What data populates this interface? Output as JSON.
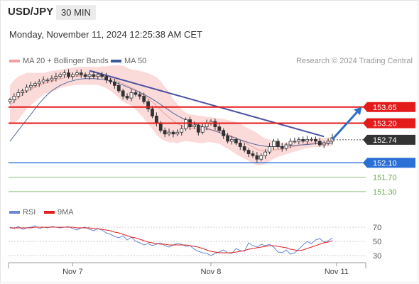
{
  "header": {
    "symbol": "USD/JPY",
    "timeframe": "30 MIN",
    "datetime": "Monday, November 11, 2024 12:25:38 AM CET"
  },
  "legend": {
    "ma20_label": "MA 20 + Bollinger Bands",
    "ma50_label": "MA 50",
    "credit": "Research © 2024 Trading Central"
  },
  "rsi_legend": {
    "rsi_label": "RSI",
    "ma_label": "9MA"
  },
  "colors": {
    "resistance": "#e31b1b",
    "support": "#2a6fd6",
    "target": "#6aa84f",
    "last_price": "#333333",
    "bollinger_fill": "#fad4d4",
    "ma20": "#f0a0a0",
    "ma50": "#556b9c",
    "trendline": "#4a53a0",
    "candle": "#333333",
    "rsi": "#6b87d6",
    "rsi_ma": "#e02020"
  },
  "chart_data": {
    "type": "candlestick",
    "title": "USD/JPY",
    "timeframe": "30 MIN",
    "x_ticks": [
      {
        "label": "Nov 7",
        "index": 15
      },
      {
        "label": "Nov 8",
        "index": 48
      },
      {
        "label": "Nov 11",
        "index": 78
      }
    ],
    "price_levels": [
      {
        "value": 153.65,
        "label": "153.65",
        "kind": "resistance"
      },
      {
        "value": 153.2,
        "label": "153.20",
        "kind": "resistance"
      },
      {
        "value": 152.74,
        "label": "152.74",
        "kind": "last"
      },
      {
        "value": 152.1,
        "label": "152.10",
        "kind": "support"
      },
      {
        "value": 151.7,
        "label": "151.70",
        "kind": "target"
      },
      {
        "value": 151.3,
        "label": "151.30",
        "kind": "target"
      }
    ],
    "ylim": [
      151.1,
      154.75
    ],
    "candle_closes": [
      153.85,
      153.95,
      154.05,
      154.1,
      154.2,
      154.25,
      154.3,
      154.35,
      154.4,
      154.4,
      154.45,
      154.5,
      154.55,
      154.6,
      154.5,
      154.55,
      154.6,
      154.55,
      154.5,
      154.55,
      154.5,
      154.55,
      154.5,
      154.4,
      154.35,
      154.25,
      154.1,
      153.95,
      153.9,
      154.05,
      154.0,
      153.95,
      153.8,
      153.6,
      153.4,
      153.2,
      153.0,
      152.9,
      152.95,
      152.9,
      152.95,
      153.05,
      153.3,
      153.1,
      153.15,
      152.95,
      153.1,
      153.2,
      153.25,
      153.1,
      153.0,
      152.85,
      152.7,
      152.75,
      152.65,
      152.55,
      152.45,
      152.35,
      152.3,
      152.2,
      152.3,
      152.4,
      152.55,
      152.7,
      152.55,
      152.5,
      152.6,
      152.7,
      152.7,
      152.75,
      152.7,
      152.75,
      152.75,
      152.7,
      152.6,
      152.65,
      152.7,
      152.8
    ],
    "ma20": [
      153.7,
      153.8,
      153.9,
      154.0,
      154.1,
      154.15,
      154.2,
      154.25,
      154.3,
      154.33,
      154.37,
      154.4,
      154.43,
      154.46,
      154.48,
      154.5,
      154.51,
      154.52,
      154.52,
      154.52,
      154.52,
      154.51,
      154.5,
      154.48,
      154.45,
      154.41,
      154.36,
      154.3,
      154.24,
      154.19,
      154.13,
      154.06,
      153.98,
      153.89,
      153.79,
      153.68,
      153.57,
      153.46,
      153.36,
      153.27,
      153.19,
      153.13,
      153.1,
      153.07,
      153.05,
      153.03,
      153.02,
      153.02,
      153.02,
      153.0,
      152.98,
      152.94,
      152.89,
      152.84,
      152.79,
      152.73,
      152.67,
      152.6,
      152.54,
      152.48,
      152.44,
      152.43,
      152.44,
      152.46,
      152.47,
      152.48,
      152.5,
      152.53,
      152.56,
      152.59,
      152.61,
      152.63,
      152.65,
      152.66,
      152.66,
      152.67,
      152.68,
      152.7
    ],
    "ma50": [
      152.7,
      152.85,
      153.0,
      153.15,
      153.3,
      153.45,
      153.6,
      153.75,
      153.88,
      154.0,
      154.1,
      154.18,
      154.25,
      154.3,
      154.35,
      154.38,
      154.41,
      154.43,
      154.44,
      154.44,
      154.44,
      154.43,
      154.42,
      154.4,
      154.37,
      154.34,
      154.3,
      154.26,
      154.21,
      154.16,
      154.11,
      154.06,
      154.0,
      153.94,
      153.87,
      153.8,
      153.72,
      153.64,
      153.56,
      153.48,
      153.41,
      153.35,
      153.29,
      153.24,
      153.19,
      153.14,
      153.1,
      153.06,
      153.02,
      152.98,
      152.94,
      152.9,
      152.86,
      152.82,
      152.78,
      152.74,
      152.7,
      152.66,
      152.63,
      152.6,
      152.58,
      152.56,
      152.55,
      152.55,
      152.55,
      152.55,
      152.56,
      152.57,
      152.58,
      152.59,
      152.6,
      152.61,
      152.62,
      152.63,
      152.63,
      152.64,
      152.64,
      152.65
    ],
    "bb_width": [
      0.55,
      0.6,
      0.6,
      0.55,
      0.5,
      0.45,
      0.4,
      0.35,
      0.3,
      0.3,
      0.28,
      0.28,
      0.25,
      0.25,
      0.25,
      0.25,
      0.25,
      0.25,
      0.25,
      0.25,
      0.25,
      0.25,
      0.28,
      0.3,
      0.35,
      0.4,
      0.45,
      0.5,
      0.5,
      0.5,
      0.55,
      0.6,
      0.65,
      0.7,
      0.75,
      0.8,
      0.8,
      0.75,
      0.7,
      0.6,
      0.55,
      0.45,
      0.4,
      0.38,
      0.38,
      0.38,
      0.38,
      0.35,
      0.35,
      0.35,
      0.35,
      0.38,
      0.4,
      0.42,
      0.45,
      0.45,
      0.45,
      0.45,
      0.45,
      0.45,
      0.4,
      0.35,
      0.3,
      0.25,
      0.2,
      0.18,
      0.16,
      0.15,
      0.15,
      0.14,
      0.13,
      0.12,
      0.12,
      0.12,
      0.12,
      0.12,
      0.12,
      0.12
    ],
    "trendline": {
      "from": {
        "index": 19,
        "value": 154.66
      },
      "to": {
        "index": 75,
        "value": 152.83
      }
    },
    "projection_arrow": {
      "from": {
        "index": 77,
        "value": 152.75
      },
      "to": {
        "index": 84,
        "value": 153.65
      }
    },
    "rsi": {
      "ylim": [
        20,
        80
      ],
      "levels": [
        {
          "value": 70,
          "label": "70"
        },
        {
          "value": 50,
          "label": "50"
        },
        {
          "value": 30,
          "label": "30"
        }
      ],
      "values": [
        70,
        68,
        71,
        67,
        69,
        70,
        72,
        68,
        70,
        69,
        71,
        70,
        69,
        70,
        71,
        68,
        66,
        69,
        70,
        67,
        65,
        68,
        66,
        62,
        60,
        57,
        55,
        58,
        52,
        56,
        50,
        48,
        45,
        47,
        44,
        46,
        48,
        44,
        42,
        45,
        47,
        46,
        43,
        44,
        39,
        36,
        34,
        33,
        30,
        33,
        35,
        38,
        34,
        33,
        40,
        37,
        36,
        48,
        44,
        42,
        46,
        44,
        46,
        42,
        35,
        34,
        38,
        32,
        34,
        39,
        45,
        50,
        47,
        52,
        54,
        49,
        51,
        55
      ],
      "ma": [
        69,
        69,
        69,
        69,
        69,
        69,
        70,
        70,
        70,
        70,
        70,
        70,
        70,
        70,
        70,
        70,
        69,
        69,
        69,
        69,
        68,
        68,
        67,
        66,
        65,
        63,
        62,
        60,
        58,
        56,
        55,
        53,
        51,
        49,
        48,
        47,
        46,
        46,
        45,
        45,
        45,
        45,
        45,
        44,
        43,
        42,
        40,
        38,
        36,
        35,
        34,
        34,
        34,
        34,
        35,
        36,
        37,
        39,
        40,
        41,
        42,
        43,
        44,
        44,
        43,
        42,
        41,
        39,
        38,
        37,
        38,
        40,
        42,
        44,
        46,
        48,
        49,
        51
      ]
    }
  }
}
